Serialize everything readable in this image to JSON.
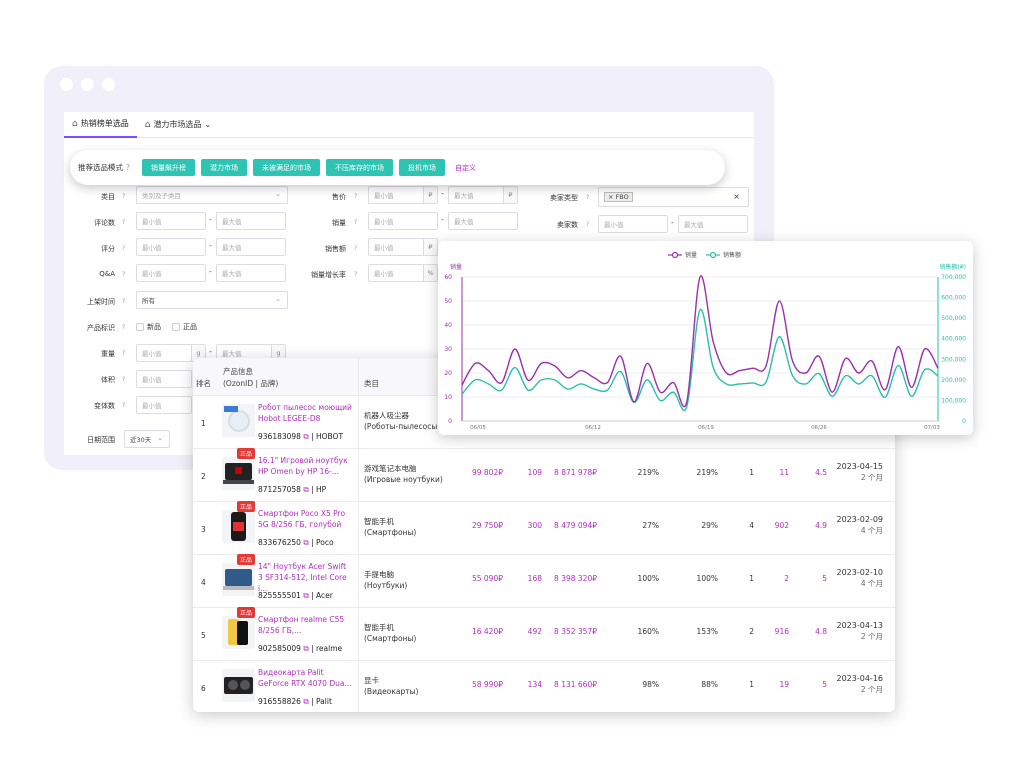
{
  "tabs": [
    {
      "label": "热销榜单选品",
      "icon": "home-icon"
    },
    {
      "label": "潜力市场选品",
      "icon": "home-icon",
      "chevron": "⌄"
    }
  ],
  "mode_bar": {
    "label": "推荐选品模式",
    "help": "?",
    "buttons": [
      "销量飙升榜",
      "潜力市场",
      "未被满足的市场",
      "不压库存的市场",
      "投机市场"
    ],
    "custom_link": "自定义"
  },
  "filters": {
    "category": {
      "label": "类目",
      "help": "?",
      "placeholder": "类别及子类目"
    },
    "reviews": {
      "label": "评论数",
      "help": "?",
      "min": "最小值",
      "max": "最大值"
    },
    "rating": {
      "label": "评分",
      "help": "?",
      "min": "最小值",
      "max": "最大值"
    },
    "qa": {
      "label": "Q&A",
      "help": "?",
      "min": "最小值",
      "max": "最大值"
    },
    "listing_time": {
      "label": "上架时间",
      "help": "?",
      "value": "所有"
    },
    "product_tag": {
      "label": "产品标识",
      "help": "?",
      "options": [
        "新品",
        "正品"
      ]
    },
    "weight": {
      "label": "重量",
      "help": "?",
      "min": "最小值",
      "max": "最大值",
      "unit": "g"
    },
    "volume": {
      "label": "体积",
      "help": "?",
      "min": "最小值"
    },
    "variants": {
      "label": "变体数",
      "help": "?",
      "min": "最小值"
    },
    "date_range": {
      "label": "日期范围",
      "value": "近30天"
    },
    "price": {
      "label": "售价",
      "help": "?",
      "min": "最小值",
      "max": "最大值",
      "unit": "₽"
    },
    "sales": {
      "label": "销量",
      "help": "?",
      "min": "最小值",
      "max": "最大值"
    },
    "revenue": {
      "label": "销售额",
      "help": "?",
      "min": "最小值",
      "unit": "₽"
    },
    "growth": {
      "label": "销量增长率",
      "help": "?",
      "min": "最小值",
      "unit": "%"
    },
    "seller_type": {
      "label": "卖家类型",
      "help": "?",
      "tag": "× FBO",
      "clear": "×"
    },
    "seller_count": {
      "label": "卖家数",
      "help": "?",
      "min": "最小值",
      "max": "最大值"
    }
  },
  "chart_data": {
    "type": "line",
    "legend": [
      "销量",
      "销售额"
    ],
    "legend_position": "top-center",
    "y_left_label": "销量",
    "y_right_label": "销售额(₽)",
    "y_left_ticks": [
      0,
      10,
      20,
      30,
      40,
      50,
      60
    ],
    "y_right_ticks": [
      "0",
      "100,000",
      "200,000",
      "300,000",
      "400,000",
      "500,000",
      "600,000",
      "700,000"
    ],
    "x_ticks": [
      "06/05",
      "06/12",
      "06/19",
      "06/26",
      "07/03"
    ],
    "ylim_left": [
      0,
      60
    ],
    "ylim_right": [
      0,
      700000
    ],
    "series": [
      {
        "name": "销量",
        "color": "#9b2fae",
        "values": [
          15,
          24,
          21,
          16,
          30,
          17,
          24,
          23,
          18,
          21,
          18,
          16,
          27,
          8,
          24,
          12,
          16,
          8,
          60,
          33,
          20,
          21,
          22,
          23,
          50,
          25,
          20,
          27,
          12,
          26,
          20,
          25,
          13,
          31,
          14,
          30,
          22
        ]
      },
      {
        "name": "销售额",
        "color": "#2bbfa8",
        "values": [
          130000,
          200000,
          180000,
          150000,
          260000,
          150000,
          200000,
          200000,
          155000,
          180000,
          155000,
          150000,
          240000,
          90000,
          200000,
          100000,
          140000,
          70000,
          540000,
          260000,
          180000,
          180000,
          185000,
          190000,
          410000,
          220000,
          180000,
          230000,
          120000,
          220000,
          180000,
          220000,
          115000,
          270000,
          120000,
          250000,
          220000
        ]
      }
    ]
  },
  "table": {
    "headers": {
      "rank": "排名",
      "product": "产品信息",
      "product_sub": "(OzonID | 品牌)",
      "category": "类目"
    },
    "rows": [
      {
        "rank": "1",
        "name": "Робот пылесос моющий Hobot LEGEE-D8",
        "id": "936183098",
        "brand": "HOBOT",
        "cat": "机器人吸尘器",
        "cat_sub": "(Роботы-пылесосы)",
        "badge": "",
        "thumb": "robot"
      },
      {
        "rank": "2",
        "name": "16.1\" Игровой ноутбук HP Omen by HP 16-...",
        "id": "871257058",
        "brand": "HP",
        "cat": "游戏笔记本电脑",
        "cat_sub": "(Игровые ноутбуки)",
        "badge": "正品",
        "thumb": "laptop",
        "price": "99 802₽",
        "sales": "109",
        "revenue": "8 871 978₽",
        "p1": "219%",
        "p2": "219%",
        "c1": "1",
        "c2": "11",
        "rating": "4.5",
        "date": "2023-04-15",
        "ago": "2 个月"
      },
      {
        "rank": "3",
        "name": "Смартфон Poco X5 Pro 5G 8/256 ГБ, голубой",
        "id": "833676250",
        "brand": "Poco",
        "cat": "智能手机",
        "cat_sub": "(Смартфоны)",
        "badge": "正品",
        "thumb": "phone",
        "price": "29 750₽",
        "sales": "300",
        "revenue": "8 479 094₽",
        "p1": "27%",
        "p2": "29%",
        "c1": "4",
        "c2": "902",
        "rating": "4.9",
        "date": "2023-02-09",
        "ago": "4 个月"
      },
      {
        "rank": "4",
        "name": "14\" Ноутбук Acer Swift 3 SF314-512, Intel Core i...",
        "id": "825555501",
        "brand": "Acer",
        "cat": "手提电脑",
        "cat_sub": "(Ноутбуки)",
        "badge": "正品",
        "thumb": "laptop2",
        "price": "55 090₽",
        "sales": "168",
        "revenue": "8 398 320₽",
        "p1": "100%",
        "p2": "100%",
        "c1": "1",
        "c2": "2",
        "rating": "5",
        "date": "2023-02-10",
        "ago": "4 个月"
      },
      {
        "rank": "5",
        "name": "Смартфон realme C55 8/256 ГБ,...",
        "id": "902585009",
        "brand": "realme",
        "cat": "智能手机",
        "cat_sub": "(Смартфоны)",
        "badge": "正品",
        "thumb": "realme",
        "price": "16 420₽",
        "sales": "492",
        "revenue": "8 352 357₽",
        "p1": "160%",
        "p2": "153%",
        "c1": "2",
        "c2": "916",
        "rating": "4.8",
        "date": "2023-04-13",
        "ago": "2 个月"
      },
      {
        "rank": "6",
        "name": "Видеокарта Palit GeForce RTX 4070 Dua...",
        "id": "916558826",
        "brand": "Palit",
        "cat": "显卡",
        "cat_sub": "(Видеокарты)",
        "badge": "",
        "thumb": "gpu",
        "price": "58 990₽",
        "sales": "134",
        "revenue": "8 131 660₽",
        "p1": "98%",
        "p2": "88%",
        "c1": "1",
        "c2": "19",
        "rating": "5",
        "date": "2023-04-16",
        "ago": "2 个月"
      }
    ]
  }
}
